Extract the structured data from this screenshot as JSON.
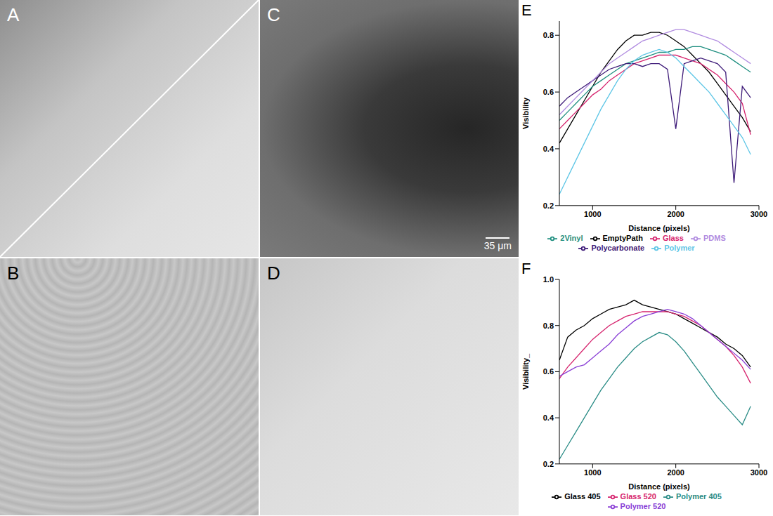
{
  "images": [
    {
      "label": "A"
    },
    {
      "label": "B"
    },
    {
      "label": "C",
      "scale_bar": "35 μm"
    },
    {
      "label": "D"
    }
  ],
  "chart_data": [
    {
      "type": "line",
      "title": "E",
      "x_label": "Distance (pixels)",
      "y_label": "Visibility",
      "x": [
        600,
        700,
        800,
        900,
        1000,
        1100,
        1200,
        1300,
        1400,
        1500,
        1600,
        1700,
        1800,
        1900,
        2000,
        2100,
        2200,
        2300,
        2400,
        2500,
        2600,
        2700,
        2800,
        2900
      ],
      "series": [
        {
          "name": "EmptyPath",
          "color": "#000000",
          "values": [
            0.42,
            0.47,
            0.52,
            0.57,
            0.62,
            0.67,
            0.71,
            0.75,
            0.78,
            0.8,
            0.8,
            0.81,
            0.81,
            0.8,
            0.78,
            0.76,
            0.73,
            0.7,
            0.67,
            0.63,
            0.59,
            0.55,
            0.51,
            0.46
          ]
        },
        {
          "name": "Glass",
          "color": "#d6246e",
          "values": [
            0.47,
            0.5,
            0.53,
            0.56,
            0.59,
            0.61,
            0.64,
            0.66,
            0.68,
            0.7,
            0.71,
            0.72,
            0.73,
            0.73,
            0.73,
            0.72,
            0.71,
            0.7,
            0.68,
            0.66,
            0.63,
            0.6,
            0.56,
            0.45
          ]
        },
        {
          "name": "2Vinyl",
          "color": "#1f8f80",
          "values": [
            0.5,
            0.53,
            0.56,
            0.59,
            0.62,
            0.64,
            0.66,
            0.68,
            0.7,
            0.71,
            0.72,
            0.73,
            0.74,
            0.74,
            0.75,
            0.75,
            0.76,
            0.76,
            0.75,
            0.74,
            0.73,
            0.71,
            0.69,
            0.67
          ]
        },
        {
          "name": "Polycarbonate",
          "color": "#3d1a78",
          "values": [
            0.55,
            0.58,
            0.6,
            0.62,
            0.64,
            0.66,
            0.68,
            0.69,
            0.7,
            0.7,
            0.69,
            0.7,
            0.7,
            0.68,
            0.47,
            0.7,
            0.71,
            0.72,
            0.71,
            0.7,
            0.67,
            0.28,
            0.62,
            0.58
          ]
        },
        {
          "name": "PDMS",
          "color": "#b08be0",
          "values": [
            0.52,
            0.55,
            0.58,
            0.61,
            0.64,
            0.67,
            0.7,
            0.72,
            0.74,
            0.76,
            0.78,
            0.79,
            0.8,
            0.81,
            0.82,
            0.82,
            0.81,
            0.8,
            0.79,
            0.78,
            0.76,
            0.74,
            0.72,
            0.7
          ]
        },
        {
          "name": "Polymer",
          "color": "#5ec6e6",
          "values": [
            0.24,
            0.3,
            0.36,
            0.42,
            0.48,
            0.54,
            0.59,
            0.64,
            0.68,
            0.71,
            0.73,
            0.74,
            0.75,
            0.74,
            0.72,
            0.69,
            0.66,
            0.63,
            0.6,
            0.56,
            0.52,
            0.48,
            0.44,
            0.38
          ]
        }
      ],
      "xlim": [
        600,
        3000
      ],
      "xticks": [
        1000,
        2000,
        3000
      ],
      "ylim": [
        0.2,
        0.85
      ],
      "yticks": [
        0.2,
        0.4,
        0.6,
        0.8
      ],
      "legend": "bottom"
    },
    {
      "type": "line",
      "title": "F",
      "x_label": "Distance (pixels)",
      "y_label": "Visibility_",
      "x": [
        600,
        700,
        800,
        900,
        1000,
        1100,
        1200,
        1300,
        1400,
        1500,
        1600,
        1700,
        1800,
        1900,
        2000,
        2100,
        2200,
        2300,
        2400,
        2500,
        2600,
        2700,
        2800,
        2900
      ],
      "series": [
        {
          "name": "Glass 405",
          "color": "#000000",
          "values": [
            0.65,
            0.75,
            0.78,
            0.8,
            0.83,
            0.85,
            0.87,
            0.88,
            0.89,
            0.91,
            0.89,
            0.88,
            0.87,
            0.86,
            0.85,
            0.83,
            0.81,
            0.79,
            0.77,
            0.75,
            0.72,
            0.7,
            0.67,
            0.62
          ]
        },
        {
          "name": "Glass 520",
          "color": "#d6246e",
          "values": [
            0.57,
            0.62,
            0.66,
            0.7,
            0.74,
            0.77,
            0.8,
            0.82,
            0.84,
            0.85,
            0.86,
            0.86,
            0.86,
            0.86,
            0.85,
            0.84,
            0.82,
            0.8,
            0.77,
            0.74,
            0.71,
            0.67,
            0.62,
            0.55
          ]
        },
        {
          "name": "Polymer 405",
          "color": "#2a8c86",
          "values": [
            0.22,
            0.28,
            0.34,
            0.4,
            0.46,
            0.52,
            0.57,
            0.62,
            0.66,
            0.7,
            0.73,
            0.75,
            0.77,
            0.76,
            0.73,
            0.69,
            0.64,
            0.59,
            0.54,
            0.49,
            0.45,
            0.41,
            0.37,
            0.45
          ]
        },
        {
          "name": "Polymer 520",
          "color": "#8a3fd6",
          "values": [
            0.58,
            0.6,
            0.62,
            0.63,
            0.66,
            0.69,
            0.72,
            0.76,
            0.79,
            0.82,
            0.84,
            0.85,
            0.86,
            0.87,
            0.86,
            0.85,
            0.83,
            0.8,
            0.77,
            0.74,
            0.71,
            0.68,
            0.65,
            0.61
          ]
        }
      ],
      "xlim": [
        600,
        3000
      ],
      "xticks": [
        1000,
        2000,
        3000
      ],
      "ylim": [
        0.2,
        1.0
      ],
      "yticks": [
        0.2,
        0.4,
        0.6,
        0.8,
        {
          "value": 1,
          "label": "1.0"
        }
      ],
      "legend": "bottom"
    }
  ]
}
